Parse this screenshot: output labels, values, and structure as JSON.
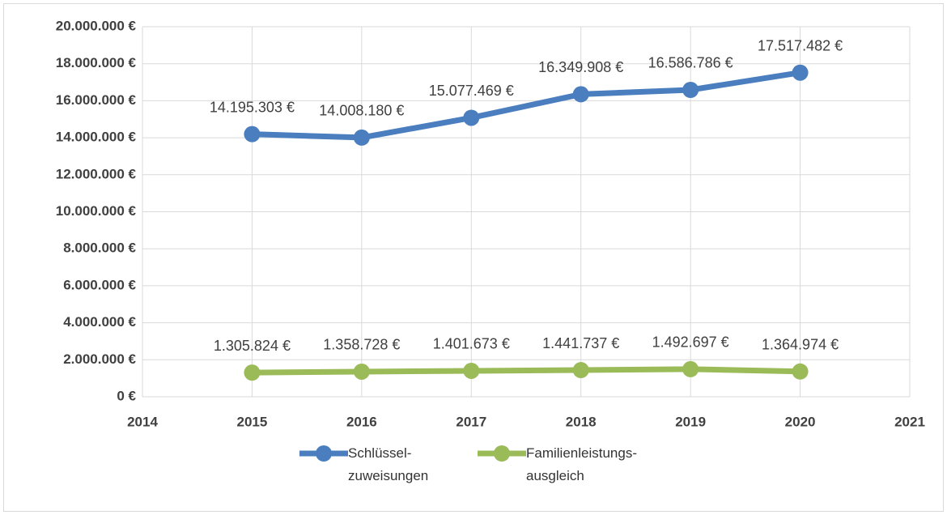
{
  "chart_data": {
    "type": "line",
    "x": [
      2015,
      2016,
      2017,
      2018,
      2019,
      2020
    ],
    "series": [
      {
        "name": "Schlüssel-zuweisungen",
        "color": "#4a7ebf",
        "values": [
          14195303,
          14008180,
          15077469,
          16349908,
          16586786,
          17517482
        ],
        "value_labels": [
          "14.195.303 €",
          "14.008.180 €",
          "15.077.469 €",
          "16.349.908 €",
          "16.586.786 €",
          "17.517.482 €"
        ]
      },
      {
        "name": "Familienleistungs-ausgleich",
        "color": "#9bbb59",
        "values": [
          1305824,
          1358728,
          1401673,
          1441737,
          1492697,
          1364974
        ],
        "value_labels": [
          "1.305.824 €",
          "1.358.728 €",
          "1.401.673 €",
          "1.441.737 €",
          "1.492.697 €",
          "1.364.974 €"
        ]
      }
    ],
    "xlim": [
      2014,
      2021
    ],
    "xticks": [
      2014,
      2015,
      2016,
      2017,
      2018,
      2019,
      2020,
      2021
    ],
    "ylim": [
      0,
      20000000
    ],
    "yticks": [
      {
        "value": 0,
        "label": "0 €"
      },
      {
        "value": 2000000,
        "label": "2.000.000 €"
      },
      {
        "value": 4000000,
        "label": "4.000.000 €"
      },
      {
        "value": 6000000,
        "label": "6.000.000 €"
      },
      {
        "value": 8000000,
        "label": "8.000.000 €"
      },
      {
        "value": 10000000,
        "label": "10.000.000 €"
      },
      {
        "value": 12000000,
        "label": "12.000.000 €"
      },
      {
        "value": 14000000,
        "label": "14.000.000 €"
      },
      {
        "value": 16000000,
        "label": "16.000.000 €"
      },
      {
        "value": 18000000,
        "label": "18.000.000 €"
      },
      {
        "value": 20000000,
        "label": "20.000.000 €"
      }
    ],
    "grid": true,
    "legend": "bottom"
  }
}
